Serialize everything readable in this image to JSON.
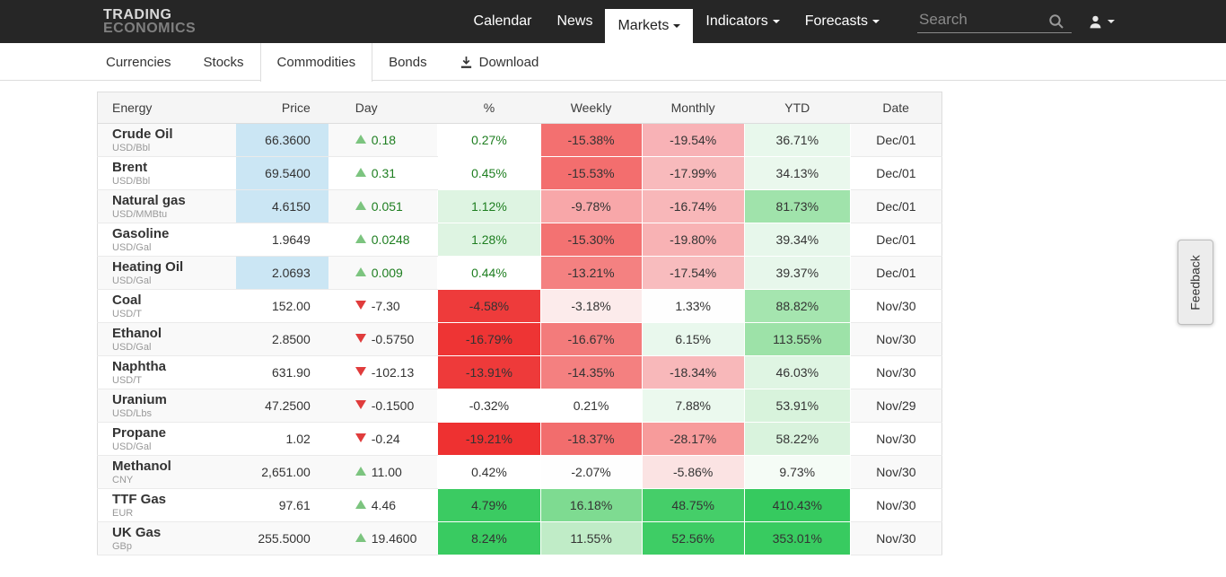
{
  "navbar": {
    "logo_line1": "TRADING",
    "logo_line2": "ECONOMICS",
    "items": [
      {
        "label": "Calendar",
        "active": false,
        "caret": false
      },
      {
        "label": "News",
        "active": false,
        "caret": false
      },
      {
        "label": "Markets",
        "active": true,
        "caret": true
      },
      {
        "label": "Indicators",
        "active": false,
        "caret": true
      },
      {
        "label": "Forecasts",
        "active": false,
        "caret": true
      }
    ],
    "search_placeholder": "Search"
  },
  "subnav": {
    "tabs": [
      {
        "label": "Currencies",
        "active": false,
        "icon": null
      },
      {
        "label": "Stocks",
        "active": false,
        "icon": null
      },
      {
        "label": "Commodities",
        "active": true,
        "icon": null
      },
      {
        "label": "Bonds",
        "active": false,
        "icon": null
      },
      {
        "label": "Download",
        "active": false,
        "icon": "download-icon"
      }
    ]
  },
  "colors": {
    "navbar_bg": "#262626",
    "price_highlight_blue": "#cbe6f4",
    "up_triangle_green": "#7cc47f",
    "down_triangle_red": "#e03c3c",
    "positive_text_green": "#1e7e20",
    "default_text": "#333333"
  },
  "table": {
    "columns": [
      "Energy",
      "Price",
      "Day",
      "%",
      "Weekly",
      "Monthly",
      "YTD",
      "Date"
    ],
    "rows": [
      {
        "name": "Crude Oil",
        "unit": "USD/Bbl",
        "price": "66.3600",
        "price_bg": "#cbe6f4",
        "day": {
          "dir": "up",
          "value": "0.18",
          "fg": "#1e7e20"
        },
        "pct": {
          "value": "0.27%",
          "fg": "#1e7e20",
          "bg": "#ffffff"
        },
        "weekly": {
          "value": "-15.38%",
          "bg": "#f37070"
        },
        "monthly": {
          "value": "-19.54%",
          "bg": "#f8b2b6"
        },
        "ytd": {
          "value": "36.71%",
          "bg": "#e8f8ec"
        },
        "date": "Dec/01"
      },
      {
        "name": "Brent",
        "unit": "USD/Bbl",
        "price": "69.5400",
        "price_bg": "#cbe6f4",
        "day": {
          "dir": "up",
          "value": "0.31",
          "fg": "#1e7e20"
        },
        "pct": {
          "value": "0.45%",
          "fg": "#1e7e20",
          "bg": "#ffffff"
        },
        "weekly": {
          "value": "-15.53%",
          "bg": "#f36e6e"
        },
        "monthly": {
          "value": "-17.99%",
          "bg": "#f8babc"
        },
        "ytd": {
          "value": "34.13%",
          "bg": "#eaf8ed"
        },
        "date": "Dec/01"
      },
      {
        "name": "Natural gas",
        "unit": "USD/MMBtu",
        "price": "4.6150",
        "price_bg": "#cbe6f4",
        "day": {
          "dir": "up",
          "value": "0.051",
          "fg": "#1e7e20"
        },
        "pct": {
          "value": "1.12%",
          "fg": "#1e7e20",
          "bg": "#def4e2"
        },
        "weekly": {
          "value": "-9.78%",
          "bg": "#f8a7a9"
        },
        "monthly": {
          "value": "-16.74%",
          "bg": "#f8b7b9"
        },
        "ytd": {
          "value": "81.73%",
          "bg": "#a0e3ab"
        },
        "date": "Dec/01"
      },
      {
        "name": "Gasoline",
        "unit": "USD/Gal",
        "price": "1.9649",
        "price_bg": null,
        "day": {
          "dir": "up",
          "value": "0.0248",
          "fg": "#1e7e20"
        },
        "pct": {
          "value": "1.28%",
          "fg": "#1e7e20",
          "bg": "#def4e2"
        },
        "weekly": {
          "value": "-15.30%",
          "bg": "#f37272"
        },
        "monthly": {
          "value": "-19.80%",
          "bg": "#f8b2b4"
        },
        "ytd": {
          "value": "39.34%",
          "bg": "#e7f7eb"
        },
        "date": "Dec/01"
      },
      {
        "name": "Heating Oil",
        "unit": "USD/Gal",
        "price": "2.0693",
        "price_bg": "#cbe6f4",
        "day": {
          "dir": "up",
          "value": "0.009",
          "fg": "#1e7e20"
        },
        "pct": {
          "value": "0.44%",
          "fg": "#1e7e20",
          "bg": "#ffffff"
        },
        "weekly": {
          "value": "-13.21%",
          "bg": "#f48181"
        },
        "monthly": {
          "value": "-17.54%",
          "bg": "#f8bcbe"
        },
        "ytd": {
          "value": "39.37%",
          "bg": "#e7f7eb"
        },
        "date": "Dec/01"
      },
      {
        "name": "Coal",
        "unit": "USD/T",
        "price": "152.00",
        "price_bg": null,
        "day": {
          "dir": "down",
          "value": "-7.30",
          "fg": "#333333"
        },
        "pct": {
          "value": "-4.58%",
          "fg": "#333333",
          "bg": "#ee3b3b"
        },
        "weekly": {
          "value": "-3.18%",
          "bg": "#fcebeb"
        },
        "monthly": {
          "value": "1.33%",
          "bg": "#fefefe"
        },
        "ytd": {
          "value": "88.82%",
          "bg": "#a5e5af"
        },
        "date": "Nov/30"
      },
      {
        "name": "Ethanol",
        "unit": "USD/Gal",
        "price": "2.8500",
        "price_bg": null,
        "day": {
          "dir": "down",
          "value": "-0.5750",
          "fg": "#333333"
        },
        "pct": {
          "value": "-16.79%",
          "fg": "#333333",
          "bg": "#ee3434"
        },
        "weekly": {
          "value": "-16.67%",
          "bg": "#f37b7b"
        },
        "monthly": {
          "value": "6.15%",
          "bg": "#e9f8ed"
        },
        "ytd": {
          "value": "113.55%",
          "bg": "#9de2a8"
        },
        "date": "Nov/30"
      },
      {
        "name": "Naphtha",
        "unit": "USD/T",
        "price": "631.90",
        "price_bg": null,
        "day": {
          "dir": "down",
          "value": "-102.13",
          "fg": "#333333"
        },
        "pct": {
          "value": "-13.91%",
          "fg": "#333333",
          "bg": "#ee3a3a"
        },
        "weekly": {
          "value": "-14.35%",
          "bg": "#f48080"
        },
        "monthly": {
          "value": "-18.34%",
          "bg": "#f8b8ba"
        },
        "ytd": {
          "value": "46.03%",
          "bg": "#dff5e3"
        },
        "date": "Nov/30"
      },
      {
        "name": "Uranium",
        "unit": "USD/Lbs",
        "price": "47.2500",
        "price_bg": null,
        "day": {
          "dir": "down",
          "value": "-0.1500",
          "fg": "#333333"
        },
        "pct": {
          "value": "-0.32%",
          "fg": "#333333",
          "bg": "#ffffff"
        },
        "weekly": {
          "value": "0.21%",
          "bg": "#ffffff"
        },
        "monthly": {
          "value": "7.88%",
          "bg": "#ebf9ee"
        },
        "ytd": {
          "value": "53.91%",
          "bg": "#d8f3dc"
        },
        "date": "Nov/29"
      },
      {
        "name": "Propane",
        "unit": "USD/Gal",
        "price": "1.02",
        "price_bg": null,
        "day": {
          "dir": "down",
          "value": "-0.24",
          "fg": "#333333"
        },
        "pct": {
          "value": "-19.21%",
          "fg": "#333333",
          "bg": "#ee3131"
        },
        "weekly": {
          "value": "-18.37%",
          "bg": "#f26d6d"
        },
        "monthly": {
          "value": "-28.17%",
          "bg": "#f79b9b"
        },
        "ytd": {
          "value": "58.22%",
          "bg": "#d9f3dd"
        },
        "date": "Nov/30"
      },
      {
        "name": "Methanol",
        "unit": "CNY",
        "price": "2,651.00",
        "price_bg": null,
        "day": {
          "dir": "up",
          "value": "11.00",
          "fg": "#333333"
        },
        "pct": {
          "value": "0.42%",
          "fg": "#333333",
          "bg": "#ffffff"
        },
        "weekly": {
          "value": "-2.07%",
          "bg": "#fefefe"
        },
        "monthly": {
          "value": "-5.86%",
          "bg": "#fbe3e3"
        },
        "ytd": {
          "value": "9.73%",
          "bg": "#f5fcf6"
        },
        "date": "Nov/30"
      },
      {
        "name": "TTF Gas",
        "unit": "EUR",
        "price": "97.61",
        "price_bg": null,
        "day": {
          "dir": "up",
          "value": "4.46",
          "fg": "#333333"
        },
        "pct": {
          "value": "4.79%",
          "fg": "#333333",
          "bg": "#3bcb62"
        },
        "weekly": {
          "value": "16.18%",
          "bg": "#7edb91"
        },
        "monthly": {
          "value": "48.75%",
          "bg": "#45ce69"
        },
        "ytd": {
          "value": "410.43%",
          "bg": "#36ca5f"
        },
        "date": "Nov/30"
      },
      {
        "name": "UK Gas",
        "unit": "GBp",
        "price": "255.5000",
        "price_bg": null,
        "day": {
          "dir": "up",
          "value": "19.4600",
          "fg": "#333333"
        },
        "pct": {
          "value": "8.24%",
          "fg": "#333333",
          "bg": "#39cb61"
        },
        "weekly": {
          "value": "11.55%",
          "bg": "#c0ecc7"
        },
        "monthly": {
          "value": "52.56%",
          "bg": "#3ecd65"
        },
        "ytd": {
          "value": "353.01%",
          "bg": "#38cb60"
        },
        "date": "Nov/30"
      }
    ]
  },
  "feedback": {
    "label": "Feedback"
  }
}
